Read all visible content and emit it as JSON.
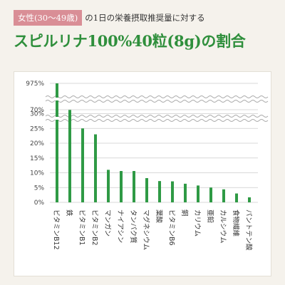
{
  "header": {
    "badge": "女性(30〜49歳)",
    "subtitle": "の1日の栄養摂取推奨量に対する",
    "title": "スピルリナ100%40粒(8g)の割合"
  },
  "colors": {
    "bar": "#2f9a45",
    "title": "#2f8f3c",
    "badge_bg": "#d98e96",
    "background": "#f5f2ec",
    "grid": "#cccccc"
  },
  "chart_data": {
    "type": "bar",
    "y_axis_break": true,
    "yticks": [
      "0%",
      "5%",
      "10%",
      "15%",
      "20%",
      "25%",
      "30%",
      "70%",
      "975%"
    ],
    "grid": true,
    "categories": [
      "ビタミンB12",
      "鉄",
      "ビタミンB1",
      "ビタミンB2",
      "マンガン",
      "ナイアシン",
      "タンパク質",
      "マグネシウム",
      "葉酸",
      "ビタミンB6",
      "銅",
      "カリウム",
      "亜鉛",
      "カルシウム",
      "食物繊維",
      "パントテン酸"
    ],
    "values": [
      975,
      68,
      25,
      23,
      11,
      10.6,
      10.6,
      8.2,
      7.2,
      7.1,
      6.3,
      5.7,
      5,
      4.4,
      3,
      1.7
    ]
  }
}
